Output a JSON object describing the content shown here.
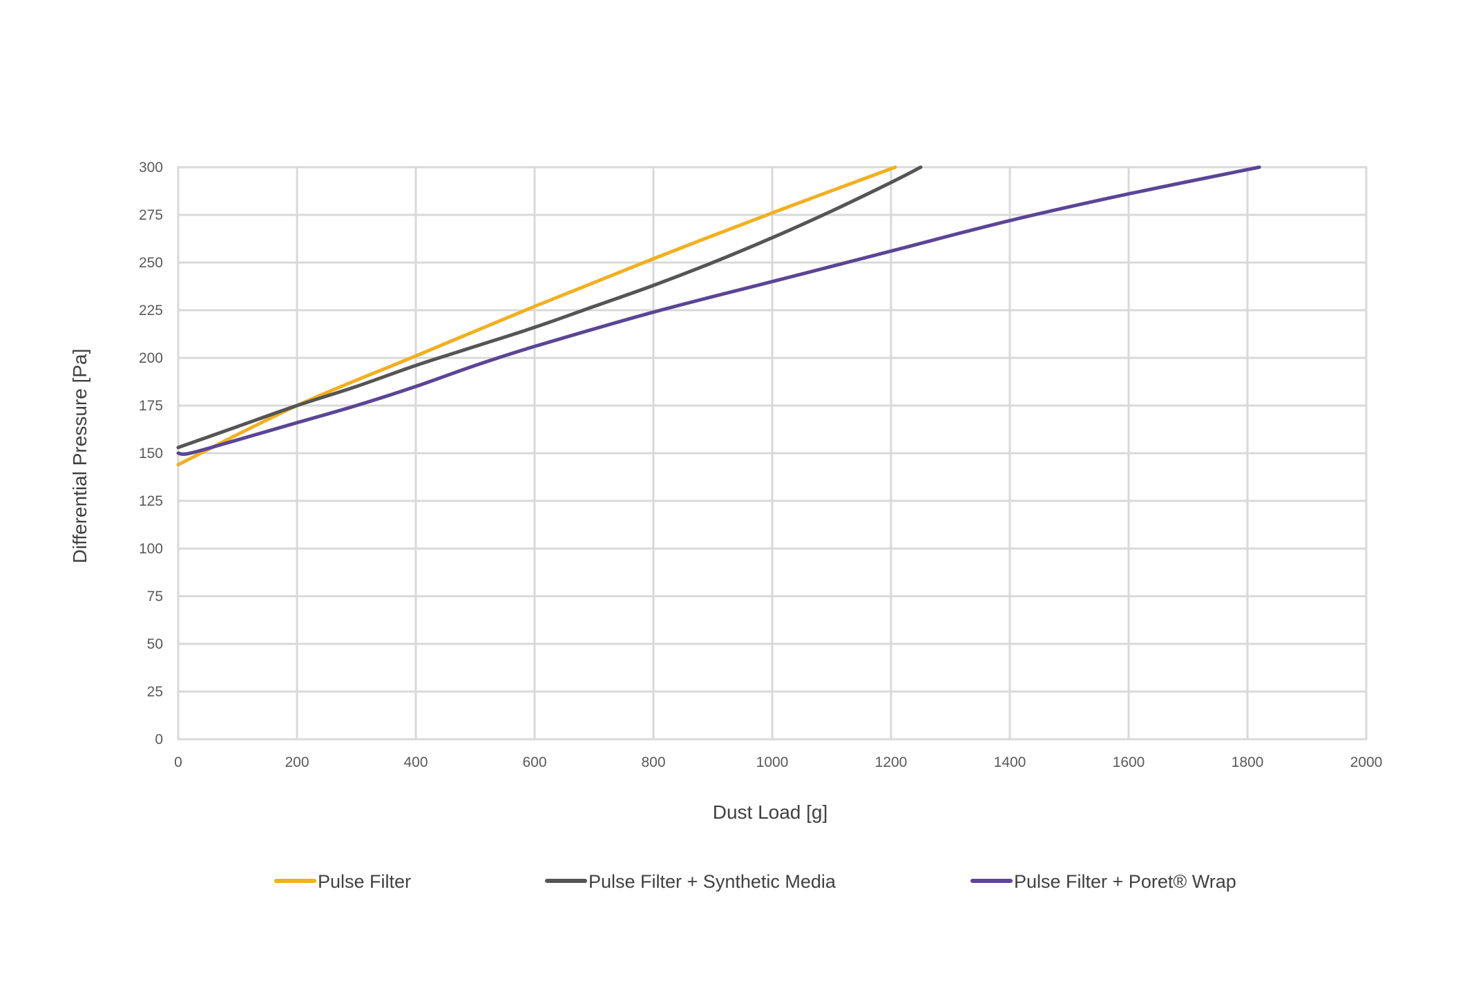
{
  "chart_data": {
    "type": "line",
    "title": "",
    "xlabel": "Dust Load [g]",
    "ylabel": "Differential Pressure [Pa]",
    "xlim": [
      0,
      2000
    ],
    "ylim": [
      0,
      300
    ],
    "x_ticks": [
      0,
      200,
      400,
      600,
      800,
      1000,
      1200,
      1400,
      1600,
      1800,
      2000
    ],
    "y_ticks": [
      0,
      25,
      50,
      75,
      100,
      125,
      150,
      175,
      200,
      225,
      250,
      275,
      300
    ],
    "grid": true,
    "legend_position": "bottom",
    "series": [
      {
        "name": "Pulse Filter",
        "color": "#f2b01e",
        "x": [
          0,
          200,
          400,
          600,
          800,
          1000,
          1207
        ],
        "y": [
          144,
          175,
          201,
          227,
          252,
          276,
          300
        ]
      },
      {
        "name": "Pulse Filter + Synthetic Media",
        "color": "#555555",
        "x": [
          0,
          100,
          200,
          300,
          400,
          500,
          600,
          700,
          800,
          900,
          1000,
          1100,
          1200,
          1250
        ],
        "y": [
          153,
          164,
          175,
          185,
          196,
          206,
          216,
          227,
          238,
          250,
          263,
          277,
          292,
          300
        ]
      },
      {
        "name": "Pulse Filter + Poret® Wrap",
        "color": "#5a4595",
        "x": [
          0,
          20,
          100,
          200,
          300,
          400,
          500,
          600,
          800,
          1000,
          1200,
          1400,
          1600,
          1820
        ],
        "y": [
          150,
          150,
          157,
          166,
          175,
          185,
          196,
          206,
          224,
          240,
          256,
          272,
          286,
          300
        ]
      }
    ]
  }
}
